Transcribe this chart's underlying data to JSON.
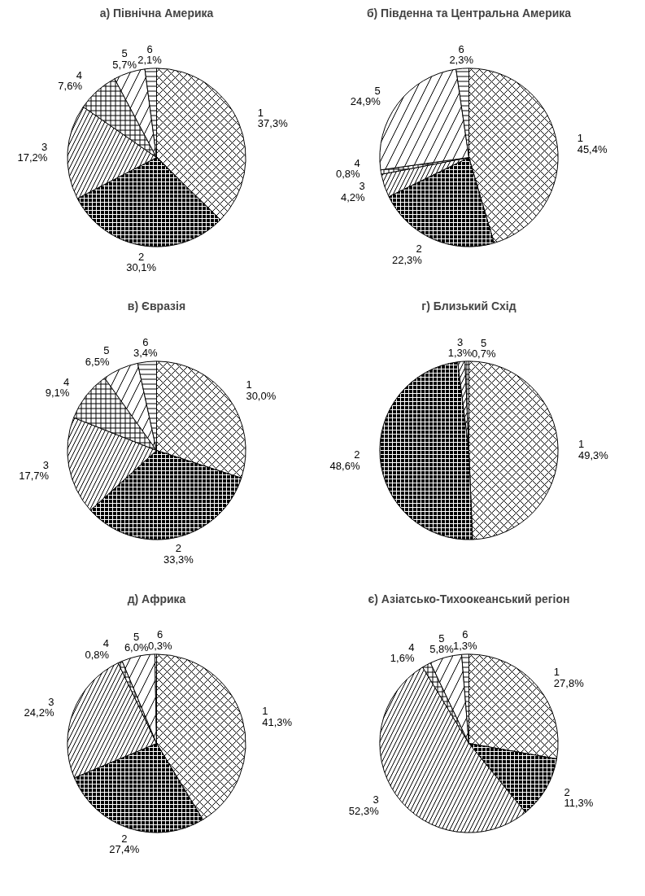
{
  "chart_data": [
    {
      "type": "pie",
      "title": "а) Північна Америка",
      "categories": [
        "1",
        "2",
        "3",
        "4",
        "5",
        "6"
      ],
      "values": [
        37.3,
        30.1,
        17.2,
        7.6,
        5.7,
        2.1
      ],
      "value_labels": [
        "37,3%",
        "30,1%",
        "17,2%",
        "7,6%",
        "5,7%",
        "2,1%"
      ],
      "colors": [
        "#ffffff",
        "#000000",
        "#ffffff",
        "#ffffff",
        "#ffffff",
        "#ffffff"
      ]
    },
    {
      "type": "pie",
      "title": "б) Південна та Центральна Америка",
      "categories": [
        "1",
        "2",
        "3",
        "4",
        "5",
        "6"
      ],
      "values": [
        45.4,
        22.3,
        4.2,
        0.8,
        24.9,
        2.3
      ],
      "value_labels": [
        "45,4%",
        "22,3%",
        "4,2%",
        "0,8%",
        "24,9%",
        "2,3%"
      ],
      "colors": [
        "#ffffff",
        "#000000",
        "#ffffff",
        "#ffffff",
        "#ffffff",
        "#ffffff"
      ]
    },
    {
      "type": "pie",
      "title": "в) Євразія",
      "categories": [
        "1",
        "2",
        "3",
        "4",
        "5",
        "6"
      ],
      "values": [
        30.0,
        33.3,
        17.7,
        9.1,
        6.5,
        3.4
      ],
      "value_labels": [
        "30,0%",
        "33,3%",
        "17,7%",
        "9,1%",
        "6,5%",
        "3,4%"
      ],
      "colors": [
        "#ffffff",
        "#000000",
        "#ffffff",
        "#ffffff",
        "#ffffff",
        "#ffffff"
      ]
    },
    {
      "type": "pie",
      "title": "г) Близький Схід",
      "categories": [
        "1",
        "2",
        "3",
        "5"
      ],
      "values": [
        49.3,
        48.6,
        1.3,
        0.7
      ],
      "value_labels": [
        "49,3%",
        "48,6%",
        "1,3%",
        "0,7%"
      ],
      "colors": [
        "#ffffff",
        "#000000",
        "#ffffff",
        "#ffffff"
      ]
    },
    {
      "type": "pie",
      "title": "д) Африка",
      "categories": [
        "1",
        "2",
        "3",
        "4",
        "5",
        "6"
      ],
      "values": [
        41.3,
        27.4,
        24.2,
        0.8,
        6.0,
        0.3
      ],
      "value_labels": [
        "41,3%",
        "27,4%",
        "24,2%",
        "0,8%",
        "6,0%",
        "0,3%"
      ],
      "colors": [
        "#ffffff",
        "#000000",
        "#ffffff",
        "#ffffff",
        "#ffffff",
        "#ffffff"
      ]
    },
    {
      "type": "pie",
      "title": "є) Азіатсько-Тихоокеанський регіон",
      "categories": [
        "1",
        "2",
        "3",
        "4",
        "5",
        "6"
      ],
      "values": [
        27.8,
        11.3,
        52.3,
        1.6,
        5.8,
        1.3
      ],
      "value_labels": [
        "27,8%",
        "11,3%",
        "52,3%",
        "1,6%",
        "5,8%",
        "1,3%"
      ],
      "colors": [
        "#ffffff",
        "#000000",
        "#ffffff",
        "#ffffff",
        "#ffffff",
        "#ffffff"
      ]
    }
  ]
}
